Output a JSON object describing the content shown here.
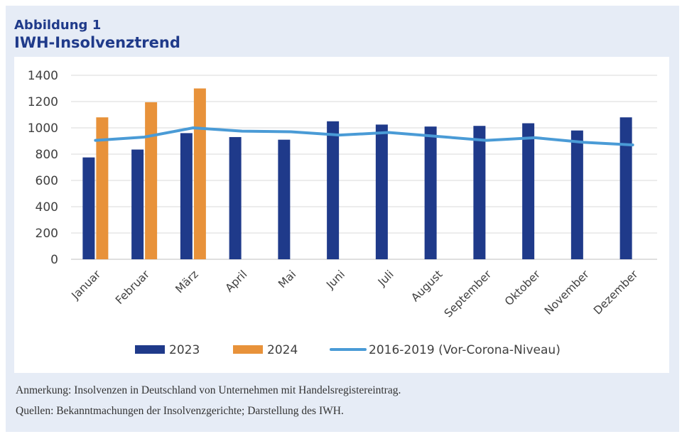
{
  "figure": {
    "label": "Abbildung 1",
    "title": "IWH-Insolvenztrend"
  },
  "notes": {
    "remark": "Anmerkung: Insolvenzen in Deutschland von Unternehmen mit Handelsregistereintrag.",
    "sources": "Quellen: Bekanntmachungen der Insolvenzgerichte; Darstellung des IWH."
  },
  "chart_data": {
    "type": "bar",
    "title": "IWH-Insolvenztrend",
    "xlabel": "",
    "ylabel": "",
    "ylim": [
      0,
      1400
    ],
    "yticks": [
      0,
      200,
      400,
      600,
      800,
      1000,
      1200,
      1400
    ],
    "grid": true,
    "legend_position": "bottom",
    "categories": [
      "Januar",
      "Februar",
      "März",
      "April",
      "Mai",
      "Juni",
      "Juli",
      "August",
      "September",
      "Oktober",
      "November",
      "Dezember"
    ],
    "series": [
      {
        "name": "2023",
        "type": "bar",
        "color": "#1f3a8a",
        "values": [
          775,
          835,
          960,
          930,
          910,
          1050,
          1025,
          1010,
          1015,
          1035,
          980,
          1080
        ]
      },
      {
        "name": "2024",
        "type": "bar",
        "color": "#e8923a",
        "values": [
          1080,
          1195,
          1300,
          null,
          null,
          null,
          null,
          null,
          null,
          null,
          null,
          null
        ]
      },
      {
        "name": "2016-2019 (Vor-Corona-Niveau)",
        "type": "line",
        "color": "#4a9bd6",
        "values": [
          905,
          930,
          1000,
          975,
          970,
          945,
          965,
          935,
          905,
          925,
          890,
          870
        ]
      }
    ]
  }
}
